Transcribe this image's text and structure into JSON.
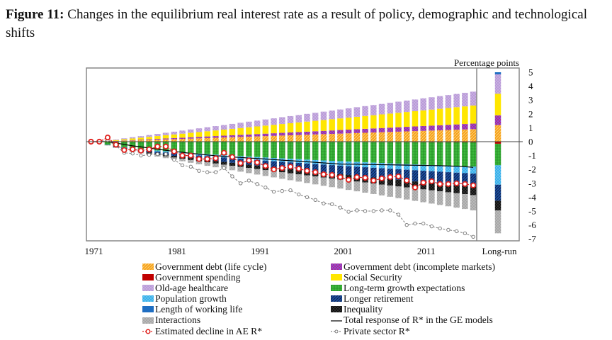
{
  "figure": {
    "label": "Figure 11:",
    "caption": "Changes in the equilibrium real interest rate as a result of policy, demographic and technological shifts"
  },
  "chart_data": {
    "type": "bar",
    "subtype": "stacked-bar-with-lines",
    "title": "Changes in the equilibrium real interest rate as a result of policy, demographic and technological shifts",
    "ylabel": "Percentage points",
    "ylabel_position": "top-right",
    "ylim": [
      -7,
      5
    ],
    "yticks": [
      5,
      4,
      3,
      2,
      1,
      0,
      -1,
      -2,
      -3,
      -4,
      -5,
      -6,
      -7
    ],
    "x_start": 1971,
    "x_end": 2017,
    "xticks": [
      "1971",
      "1981",
      "1991",
      "2001",
      "2011",
      "Long-run"
    ],
    "grid": false,
    "legend_position": "bottom",
    "years": [
      1971,
      1972,
      1973,
      1974,
      1975,
      1976,
      1977,
      1978,
      1979,
      1980,
      1981,
      1982,
      1983,
      1984,
      1985,
      1986,
      1987,
      1988,
      1989,
      1990,
      1991,
      1992,
      1993,
      1994,
      1995,
      1996,
      1997,
      1998,
      1999,
      2000,
      2001,
      2002,
      2003,
      2004,
      2005,
      2006,
      2007,
      2008,
      2009,
      2010,
      2011,
      2012,
      2013,
      2014,
      2015,
      2016,
      2017
    ],
    "bar_series": [
      {
        "name": "Government debt (life cycle)",
        "color": "#f7a11a",
        "pattern": "diag",
        "final": 0.9,
        "long_run": 1.2
      },
      {
        "name": "Government debt (incomplete markets)",
        "color": "#b2298f",
        "pattern": "check",
        "final": 0.4,
        "long_run": 0.7
      },
      {
        "name": "Social Security",
        "color": "#ffe600",
        "pattern": "solid",
        "final": 1.3,
        "long_run": 1.55
      },
      {
        "name": "Old-age healthcare",
        "color": "#b99ad8",
        "pattern": "dots",
        "final": 1.0,
        "long_run": 1.4
      },
      {
        "name": "Length of working life",
        "color": "#1f6ec2",
        "pattern": "solid",
        "final": 0.0,
        "long_run": 0.15
      },
      {
        "name": "Government spending",
        "color": "#c00000",
        "pattern": "solid",
        "final": -0.05,
        "long_run": -0.15
      },
      {
        "name": "Long-term growth expectations",
        "color": "#3cb83c",
        "pattern": "grid",
        "final": -1.75,
        "long_run": -1.55
      },
      {
        "name": "Population growth",
        "color": "#37b0ea",
        "pattern": "dots",
        "final": -0.5,
        "long_run": -1.4
      },
      {
        "name": "Longer retirement",
        "color": "#1e4fa0",
        "pattern": "diagdark",
        "final": -0.95,
        "long_run": -1.15
      },
      {
        "name": "Inequality",
        "color": "#111111",
        "pattern": "dotsdark",
        "final": -0.6,
        "long_run": -0.7
      },
      {
        "name": "Interactions",
        "color": "#a6a6a6",
        "pattern": "dots",
        "final": -1.1,
        "long_run": -1.65
      }
    ],
    "line_series": [
      {
        "name": "Total response of R* in the GE models",
        "color": "#000000",
        "style": "solid",
        "values": [
          0,
          0,
          0,
          -0.1,
          -0.2,
          -0.3,
          -0.38,
          -0.46,
          -0.54,
          -0.62,
          -0.7,
          -0.77,
          -0.84,
          -0.9,
          -0.96,
          -1.01,
          -1.06,
          -1.1,
          -1.14,
          -1.18,
          -1.21,
          -1.25,
          -1.29,
          -1.33,
          -1.37,
          -1.41,
          -1.45,
          -1.49,
          -1.53,
          -1.57,
          -1.61,
          -1.62,
          -1.63,
          -1.64,
          -1.65,
          -1.66,
          -1.67,
          -1.68,
          -1.69,
          -1.7,
          -1.71,
          -1.72,
          -1.73,
          -1.75,
          -1.77,
          -1.8,
          -1.85
        ]
      },
      {
        "name": "Estimated decline in AE R*",
        "color": "#e0201c",
        "style": "dashed-circle",
        "values": [
          0,
          0,
          0.3,
          -0.22,
          -0.6,
          -0.55,
          -0.65,
          -0.55,
          -0.35,
          -0.35,
          -0.7,
          -1.0,
          -1.0,
          -1.25,
          -1.25,
          -1.2,
          -0.8,
          -1.1,
          -1.55,
          -1.35,
          -1.5,
          -1.75,
          -2.0,
          -1.9,
          -1.8,
          -1.95,
          -2.1,
          -2.2,
          -2.35,
          -2.4,
          -2.55,
          -2.75,
          -2.55,
          -2.6,
          -2.8,
          -2.65,
          -2.55,
          -2.5,
          -2.8,
          -3.3,
          -2.95,
          -2.85,
          -3.05,
          -3.05,
          -3.0,
          -3.05,
          -3.15
        ]
      },
      {
        "name": "Private sector R*",
        "color": "#7f7f7f",
        "style": "dashed-diamond",
        "values": [
          0,
          0,
          0.1,
          -0.3,
          -0.8,
          -0.85,
          -1.0,
          -0.95,
          -0.9,
          -0.9,
          -1.3,
          -1.7,
          -1.8,
          -2.1,
          -2.2,
          -2.2,
          -1.9,
          -2.5,
          -3.0,
          -2.8,
          -3.05,
          -3.3,
          -3.6,
          -3.55,
          -3.5,
          -3.8,
          -4.0,
          -4.2,
          -4.45,
          -4.5,
          -4.75,
          -5.05,
          -4.95,
          -5.0,
          -5.0,
          -4.95,
          -4.95,
          -5.25,
          -6.0,
          -5.9,
          -5.9,
          -6.1,
          -6.25,
          -6.35,
          -6.45,
          -6.6,
          -6.85
        ]
      }
    ],
    "legend": [
      {
        "label": "Government debt (life cycle)",
        "kind": "bar",
        "color": "#f7a11a",
        "pattern": "diag"
      },
      {
        "label": "Government debt (incomplete markets)",
        "kind": "bar",
        "color": "#b2298f",
        "pattern": "check"
      },
      {
        "label": "Government spending",
        "kind": "bar",
        "color": "#c00000",
        "pattern": "solid"
      },
      {
        "label": "Social Security",
        "kind": "bar",
        "color": "#ffe600",
        "pattern": "solid"
      },
      {
        "label": "Old-age healthcare",
        "kind": "bar",
        "color": "#b99ad8",
        "pattern": "dots"
      },
      {
        "label": "Long-term growth expectations",
        "kind": "bar",
        "color": "#3cb83c",
        "pattern": "grid"
      },
      {
        "label": "Population growth",
        "kind": "bar",
        "color": "#37b0ea",
        "pattern": "dots"
      },
      {
        "label": "Longer retirement",
        "kind": "bar",
        "color": "#1e4fa0",
        "pattern": "diagdark"
      },
      {
        "label": "Length of working life",
        "kind": "bar",
        "color": "#1f6ec2",
        "pattern": "solid"
      },
      {
        "label": "Inequality",
        "kind": "bar",
        "color": "#111111",
        "pattern": "dotsdark"
      },
      {
        "label": "Interactions",
        "kind": "bar",
        "color": "#a6a6a6",
        "pattern": "dots"
      },
      {
        "label": "Total response of R* in the GE models",
        "kind": "line",
        "color": "#000000",
        "style": "solid"
      },
      {
        "label": "Estimated decline in AE R*",
        "kind": "line",
        "color": "#e0201c",
        "style": "dashed-circle"
      },
      {
        "label": "Private sector R*",
        "kind": "line",
        "color": "#7f7f7f",
        "style": "dashed-diamond"
      }
    ]
  }
}
